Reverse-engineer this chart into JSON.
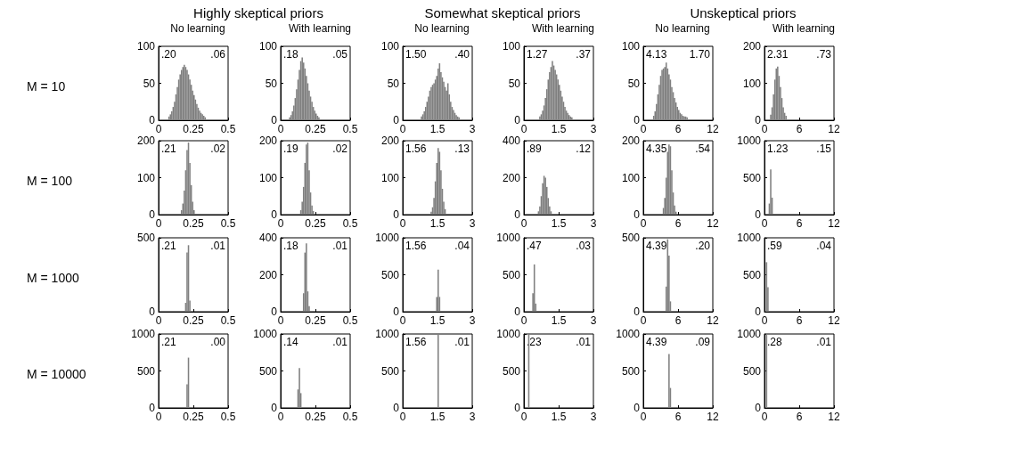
{
  "chart_data": [
    {
      "type": "histogram",
      "title": "Highly skeptical priors",
      "subtitle": "No learning",
      "ylabel": "M = 10",
      "annotations": [
        ".20",
        ".06"
      ],
      "color": "#808080",
      "xlim": [
        0,
        0.5
      ],
      "xticks": [
        0,
        0.25,
        0.5
      ],
      "ylim": [
        0,
        100
      ],
      "yticks": [
        0,
        50,
        100
      ],
      "bins": [
        0.07,
        0.08,
        0.09,
        0.1,
        0.11,
        0.12,
        0.13,
        0.14,
        0.15,
        0.16,
        0.17,
        0.18,
        0.19,
        0.2,
        0.21,
        0.22,
        0.23,
        0.24,
        0.25,
        0.26,
        0.27,
        0.28,
        0.29,
        0.3,
        0.31,
        0.32,
        0.33,
        0.34
      ],
      "values": [
        5,
        8,
        12,
        18,
        25,
        35,
        45,
        55,
        62,
        68,
        72,
        75,
        72,
        68,
        62,
        55,
        48,
        40,
        34,
        28,
        22,
        17,
        13,
        10,
        8,
        6,
        4
      ]
    },
    {
      "type": "histogram",
      "subtitle": "With learning",
      "annotations": [
        ".18",
        ".05"
      ],
      "color": "#808080",
      "xlim": [
        0,
        0.5
      ],
      "xticks": [
        0,
        0.25,
        0.5
      ],
      "ylim": [
        0,
        100
      ],
      "yticks": [
        0,
        50,
        100
      ],
      "bins": [
        0.06,
        0.07,
        0.08,
        0.09,
        0.1,
        0.11,
        0.12,
        0.13,
        0.14,
        0.15,
        0.16,
        0.17,
        0.18,
        0.19,
        0.2,
        0.21,
        0.22,
        0.23,
        0.24,
        0.25,
        0.26,
        0.27,
        0.28
      ],
      "values": [
        4,
        7,
        12,
        20,
        30,
        42,
        55,
        68,
        80,
        85,
        78,
        70,
        60,
        50,
        40,
        32,
        25,
        18,
        13,
        9,
        6,
        4
      ]
    },
    {
      "type": "histogram",
      "title": "Somewhat skeptical priors",
      "subtitle": "No learning",
      "annotations": [
        "1.50",
        ".40"
      ],
      "color": "#808080",
      "xlim": [
        0,
        3
      ],
      "xticks": [
        0,
        1.5,
        3
      ],
      "ylim": [
        0,
        100
      ],
      "yticks": [
        0,
        50,
        100
      ],
      "bins": [
        0.78,
        0.84,
        0.9,
        0.96,
        1.02,
        1.08,
        1.14,
        1.2,
        1.26,
        1.32,
        1.38,
        1.44,
        1.5,
        1.56,
        1.62,
        1.68,
        1.74,
        1.8,
        1.86,
        1.92,
        1.98,
        2.04,
        2.1,
        2.16,
        2.22,
        2.28,
        2.34,
        2.4,
        2.46
      ],
      "values": [
        5,
        8,
        12,
        18,
        25,
        32,
        40,
        45,
        48,
        50,
        55,
        60,
        70,
        77,
        65,
        58,
        52,
        45,
        40,
        50,
        35,
        25,
        18,
        14,
        10,
        7,
        5,
        4
      ]
    },
    {
      "type": "histogram",
      "subtitle": "With learning",
      "annotations": [
        "1.27",
        ".37"
      ],
      "color": "#808080",
      "xlim": [
        0,
        3
      ],
      "xticks": [
        0,
        1.5,
        3
      ],
      "ylim": [
        0,
        100
      ],
      "yticks": [
        0,
        50,
        100
      ],
      "bins": [
        0.66,
        0.72,
        0.78,
        0.84,
        0.9,
        0.96,
        1.02,
        1.08,
        1.14,
        1.2,
        1.26,
        1.32,
        1.38,
        1.44,
        1.5,
        1.56,
        1.62,
        1.68,
        1.74,
        1.8,
        1.86,
        1.92,
        1.98,
        2.04,
        2.1
      ],
      "values": [
        5,
        8,
        13,
        20,
        30,
        42,
        55,
        65,
        72,
        80,
        74,
        68,
        62,
        55,
        48,
        40,
        32,
        25,
        18,
        13,
        10,
        7,
        5,
        4
      ]
    },
    {
      "type": "histogram",
      "title": "Unskeptical priors",
      "subtitle": "No learning",
      "annotations": [
        "4.13",
        "1.70"
      ],
      "color": "#808080",
      "xlim": [
        0,
        12
      ],
      "xticks": [
        0,
        6,
        12
      ],
      "ylim": [
        0,
        100
      ],
      "yticks": [
        0,
        50,
        100
      ],
      "bins": [
        1.68,
        1.92,
        2.16,
        2.4,
        2.64,
        2.88,
        3.12,
        3.36,
        3.6,
        3.84,
        4.08,
        4.32,
        4.56,
        4.8,
        5.04,
        5.28,
        5.52,
        5.76,
        6,
        6.24,
        6.48,
        6.72,
        6.96,
        7.2,
        7.44,
        7.68
      ],
      "values": [
        6,
        12,
        22,
        35,
        48,
        60,
        68,
        70,
        72,
        78,
        70,
        62,
        55,
        45,
        38,
        30,
        24,
        18,
        14,
        10,
        8,
        6,
        5,
        5,
        4
      ]
    },
    {
      "type": "histogram",
      "subtitle": "With learning",
      "annotations": [
        "2.31",
        ".73"
      ],
      "color": "#808080",
      "xlim": [
        0,
        12
      ],
      "xticks": [
        0,
        6,
        12
      ],
      "ylim": [
        0,
        200
      ],
      "yticks": [
        0,
        100,
        200
      ],
      "bins": [
        0.96,
        1.2,
        1.44,
        1.68,
        1.92,
        2.16,
        2.4,
        2.64,
        2.88,
        3.12,
        3.36,
        3.6,
        3.84
      ],
      "values": [
        15,
        35,
        70,
        110,
        140,
        145,
        120,
        90,
        60,
        35,
        20,
        12
      ]
    },
    {
      "type": "histogram",
      "ylabel": "M = 100",
      "annotations": [
        ".21",
        ".02"
      ],
      "color": "#808080",
      "xlim": [
        0,
        0.5
      ],
      "xticks": [
        0,
        0.25,
        0.5
      ],
      "ylim": [
        0,
        200
      ],
      "yticks": [
        0,
        100,
        200
      ],
      "bins": [
        0.16,
        0.17,
        0.18,
        0.19,
        0.2,
        0.21,
        0.22,
        0.23,
        0.24,
        0.25,
        0.26
      ],
      "values": [
        12,
        30,
        65,
        120,
        175,
        195,
        140,
        80,
        35,
        12
      ]
    },
    {
      "type": "histogram",
      "annotations": [
        ".19",
        ".02"
      ],
      "color": "#808080",
      "xlim": [
        0,
        0.5
      ],
      "xticks": [
        0,
        0.25,
        0.5
      ],
      "ylim": [
        0,
        200
      ],
      "yticks": [
        0,
        100,
        200
      ],
      "bins": [
        0.14,
        0.15,
        0.16,
        0.17,
        0.18,
        0.19,
        0.2,
        0.21,
        0.22,
        0.23,
        0.24
      ],
      "values": [
        12,
        35,
        75,
        140,
        190,
        195,
        120,
        60,
        25,
        10
      ]
    },
    {
      "type": "histogram",
      "annotations": [
        "1.56",
        ".13"
      ],
      "color": "#808080",
      "xlim": [
        0,
        3
      ],
      "xticks": [
        0,
        1.5,
        3
      ],
      "ylim": [
        0,
        200
      ],
      "yticks": [
        0,
        100,
        200
      ],
      "bins": [
        1.2,
        1.26,
        1.32,
        1.38,
        1.44,
        1.5,
        1.56,
        1.62,
        1.68,
        1.74,
        1.8,
        1.86
      ],
      "values": [
        8,
        20,
        45,
        90,
        140,
        180,
        170,
        120,
        70,
        35,
        15
      ]
    },
    {
      "type": "histogram",
      "annotations": [
        ".89",
        ".12"
      ],
      "color": "#808080",
      "xlim": [
        0,
        3
      ],
      "xticks": [
        0,
        1.5,
        3
      ],
      "ylim": [
        0,
        400
      ],
      "yticks": [
        0,
        200,
        400
      ],
      "bins": [
        0.6,
        0.66,
        0.72,
        0.78,
        0.84,
        0.9,
        0.96,
        1.02,
        1.08,
        1.14,
        1.2
      ],
      "values": [
        18,
        45,
        100,
        170,
        210,
        200,
        150,
        90,
        45,
        18
      ]
    },
    {
      "type": "histogram",
      "annotations": [
        "4.35",
        ".54"
      ],
      "color": "#808080",
      "xlim": [
        0,
        12
      ],
      "xticks": [
        0,
        6,
        12
      ],
      "ylim": [
        0,
        200
      ],
      "yticks": [
        0,
        100,
        200
      ],
      "bins": [
        3.36,
        3.6,
        3.84,
        4.08,
        4.32,
        4.56,
        4.8,
        5.04,
        5.28,
        5.52,
        5.76
      ],
      "values": [
        18,
        45,
        100,
        170,
        190,
        185,
        120,
        60,
        25,
        8
      ]
    },
    {
      "type": "histogram",
      "annotations": [
        "1.23",
        ".15"
      ],
      "color": "#808080",
      "xlim": [
        0,
        12
      ],
      "xticks": [
        0,
        6,
        12
      ],
      "ylim": [
        0,
        1000
      ],
      "yticks": [
        0,
        500,
        1000
      ],
      "bins": [
        0.72,
        0.96,
        1.2,
        1.44
      ],
      "values": [
        150,
        610,
        230
      ]
    },
    {
      "type": "histogram",
      "ylabel": "M = 1000",
      "annotations": [
        ".21",
        ".01"
      ],
      "color": "#808080",
      "xlim": [
        0,
        0.5
      ],
      "xticks": [
        0,
        0.25,
        0.5
      ],
      "ylim": [
        0,
        500
      ],
      "yticks": [
        0,
        500
      ],
      "bins": [
        0.19,
        0.2,
        0.21,
        0.22,
        0.23
      ],
      "values": [
        60,
        400,
        450,
        75
      ]
    },
    {
      "type": "histogram",
      "annotations": [
        ".18",
        ".01"
      ],
      "color": "#808080",
      "xlim": [
        0,
        0.5
      ],
      "xticks": [
        0,
        0.25,
        0.5
      ],
      "ylim": [
        0,
        400
      ],
      "yticks": [
        0,
        200,
        400
      ],
      "bins": [
        0.16,
        0.17,
        0.18,
        0.19,
        0.2,
        0.21
      ],
      "values": [
        100,
        320,
        370,
        110,
        30
      ]
    },
    {
      "type": "histogram",
      "annotations": [
        "1.56",
        ".04"
      ],
      "color": "#808080",
      "xlim": [
        0,
        3
      ],
      "xticks": [
        0,
        1.5,
        3
      ],
      "ylim": [
        0,
        1000
      ],
      "yticks": [
        0,
        500,
        1000
      ],
      "bins": [
        1.44,
        1.5,
        1.56,
        1.62
      ],
      "values": [
        200,
        570,
        200
      ]
    },
    {
      "type": "histogram",
      "annotations": [
        ".47",
        ".03"
      ],
      "color": "#808080",
      "xlim": [
        0,
        3
      ],
      "xticks": [
        0,
        1.5,
        3
      ],
      "ylim": [
        0,
        1000
      ],
      "yticks": [
        0,
        500,
        1000
      ],
      "bins": [
        0.36,
        0.42,
        0.48,
        0.54
      ],
      "values": [
        250,
        640,
        110
      ]
    },
    {
      "type": "histogram",
      "annotations": [
        "4.39",
        ".20"
      ],
      "color": "#808080",
      "xlim": [
        0,
        12
      ],
      "xticks": [
        0,
        6,
        12
      ],
      "ylim": [
        0,
        500
      ],
      "yticks": [
        0,
        500
      ],
      "bins": [
        3.84,
        4.08,
        4.32,
        4.56,
        4.8
      ],
      "values": [
        170,
        490,
        380,
        70
      ]
    },
    {
      "type": "histogram",
      "annotations": [
        ".59",
        ".04"
      ],
      "color": "#808080",
      "xlim": [
        0,
        12
      ],
      "xticks": [
        0,
        6,
        12
      ],
      "ylim": [
        0,
        1000
      ],
      "yticks": [
        0,
        500,
        1000
      ],
      "bins": [
        0.24,
        0.48,
        0.72
      ],
      "values": [
        670,
        330
      ]
    },
    {
      "type": "histogram",
      "ylabel": "M = 10000",
      "annotations": [
        ".21",
        ".00"
      ],
      "color": "#808080",
      "xlim": [
        0,
        0.5
      ],
      "xticks": [
        0,
        0.25,
        0.5
      ],
      "ylim": [
        0,
        1000
      ],
      "yticks": [
        0,
        500,
        1000
      ],
      "bins": [
        0.2,
        0.21,
        0.22
      ],
      "values": [
        320,
        680
      ]
    },
    {
      "type": "histogram",
      "annotations": [
        ".14",
        ".01"
      ],
      "color": "#808080",
      "xlim": [
        0,
        0.5
      ],
      "xticks": [
        0,
        0.25,
        0.5
      ],
      "ylim": [
        0,
        1000
      ],
      "yticks": [
        0,
        500,
        1000
      ],
      "bins": [
        0.12,
        0.13,
        0.14,
        0.15
      ],
      "values": [
        250,
        540,
        200
      ]
    },
    {
      "type": "histogram",
      "annotations": [
        "1.56",
        ".01"
      ],
      "color": "#808080",
      "xlim": [
        0,
        3
      ],
      "xticks": [
        0,
        1.5,
        3
      ],
      "ylim": [
        0,
        1000
      ],
      "yticks": [
        0,
        500,
        1000
      ],
      "bins": [
        1.5,
        1.56
      ],
      "values": [
        990
      ]
    },
    {
      "type": "histogram",
      "annotations": [
        ".23",
        ".01"
      ],
      "color": "#808080",
      "xlim": [
        0,
        3
      ],
      "xticks": [
        0,
        1.5,
        3
      ],
      "ylim": [
        0,
        1000
      ],
      "yticks": [
        0,
        500,
        1000
      ],
      "bins": [
        0.18,
        0.24
      ],
      "values": [
        990
      ]
    },
    {
      "type": "histogram",
      "annotations": [
        "4.39",
        ".09"
      ],
      "color": "#808080",
      "xlim": [
        0,
        12
      ],
      "xticks": [
        0,
        6,
        12
      ],
      "ylim": [
        0,
        1000
      ],
      "yticks": [
        0,
        500,
        1000
      ],
      "bins": [
        4.32,
        4.56,
        4.8
      ],
      "values": [
        730,
        270
      ]
    },
    {
      "type": "histogram",
      "annotations": [
        ".28",
        ".01"
      ],
      "color": "#808080",
      "xlim": [
        0,
        12
      ],
      "xticks": [
        0,
        6,
        12
      ],
      "ylim": [
        0,
        1000
      ],
      "yticks": [
        0,
        500,
        1000
      ],
      "bins": [
        0.24,
        0.48
      ],
      "values": [
        1000
      ]
    }
  ]
}
